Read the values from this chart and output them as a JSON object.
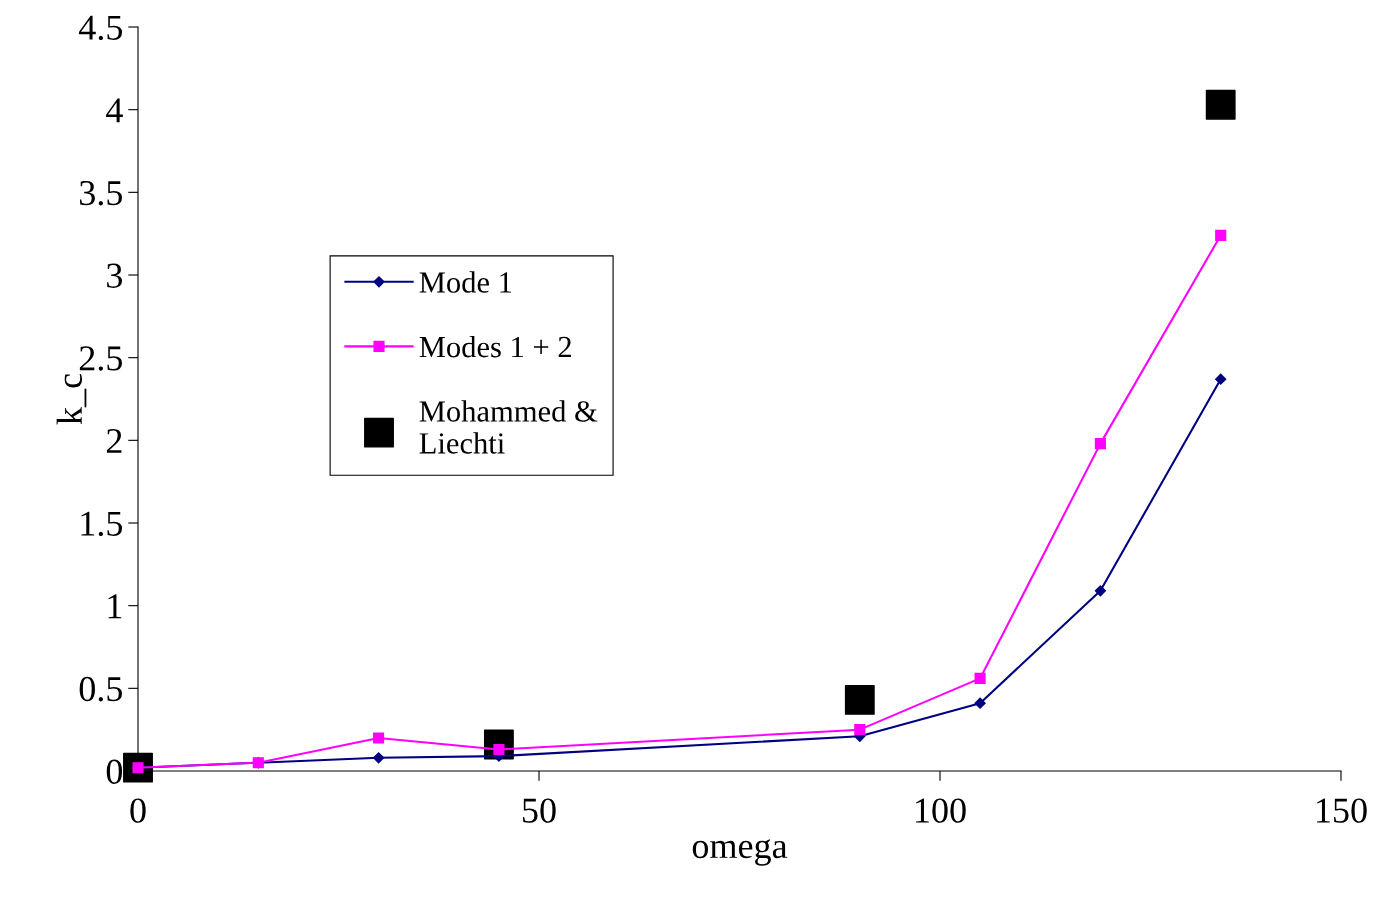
{
  "chart_data": {
    "type": "line",
    "xlabel": "omega",
    "ylabel": "k_c",
    "xlim": [
      0,
      150
    ],
    "ylim": [
      0,
      4.5
    ],
    "xticks": [
      0,
      50,
      100,
      150
    ],
    "yticks": [
      0,
      0.5,
      1,
      1.5,
      2,
      2.5,
      3,
      3.5,
      4,
      4.5
    ],
    "grid": false,
    "legend": "left",
    "series": [
      {
        "name": "Mode 1",
        "color": "#000080",
        "marker": "diamond",
        "x": [
          0,
          15,
          30,
          45,
          90,
          105,
          120,
          135
        ],
        "values": [
          0.02,
          0.05,
          0.08,
          0.09,
          0.21,
          0.41,
          1.09,
          2.37
        ]
      },
      {
        "name": "Modes 1 + 2",
        "color": "#ff00ff",
        "marker": "square",
        "x": [
          0,
          15,
          30,
          45,
          90,
          105,
          120,
          135
        ],
        "values": [
          0.02,
          0.05,
          0.2,
          0.13,
          0.25,
          0.56,
          1.98,
          3.24
        ]
      },
      {
        "name": "Mohammed &\nLiechti",
        "type": "scatter",
        "color": "#000000",
        "marker": "square",
        "x": [
          0,
          45,
          90,
          135
        ],
        "values": [
          0.02,
          0.16,
          0.43,
          4.03
        ]
      }
    ]
  }
}
